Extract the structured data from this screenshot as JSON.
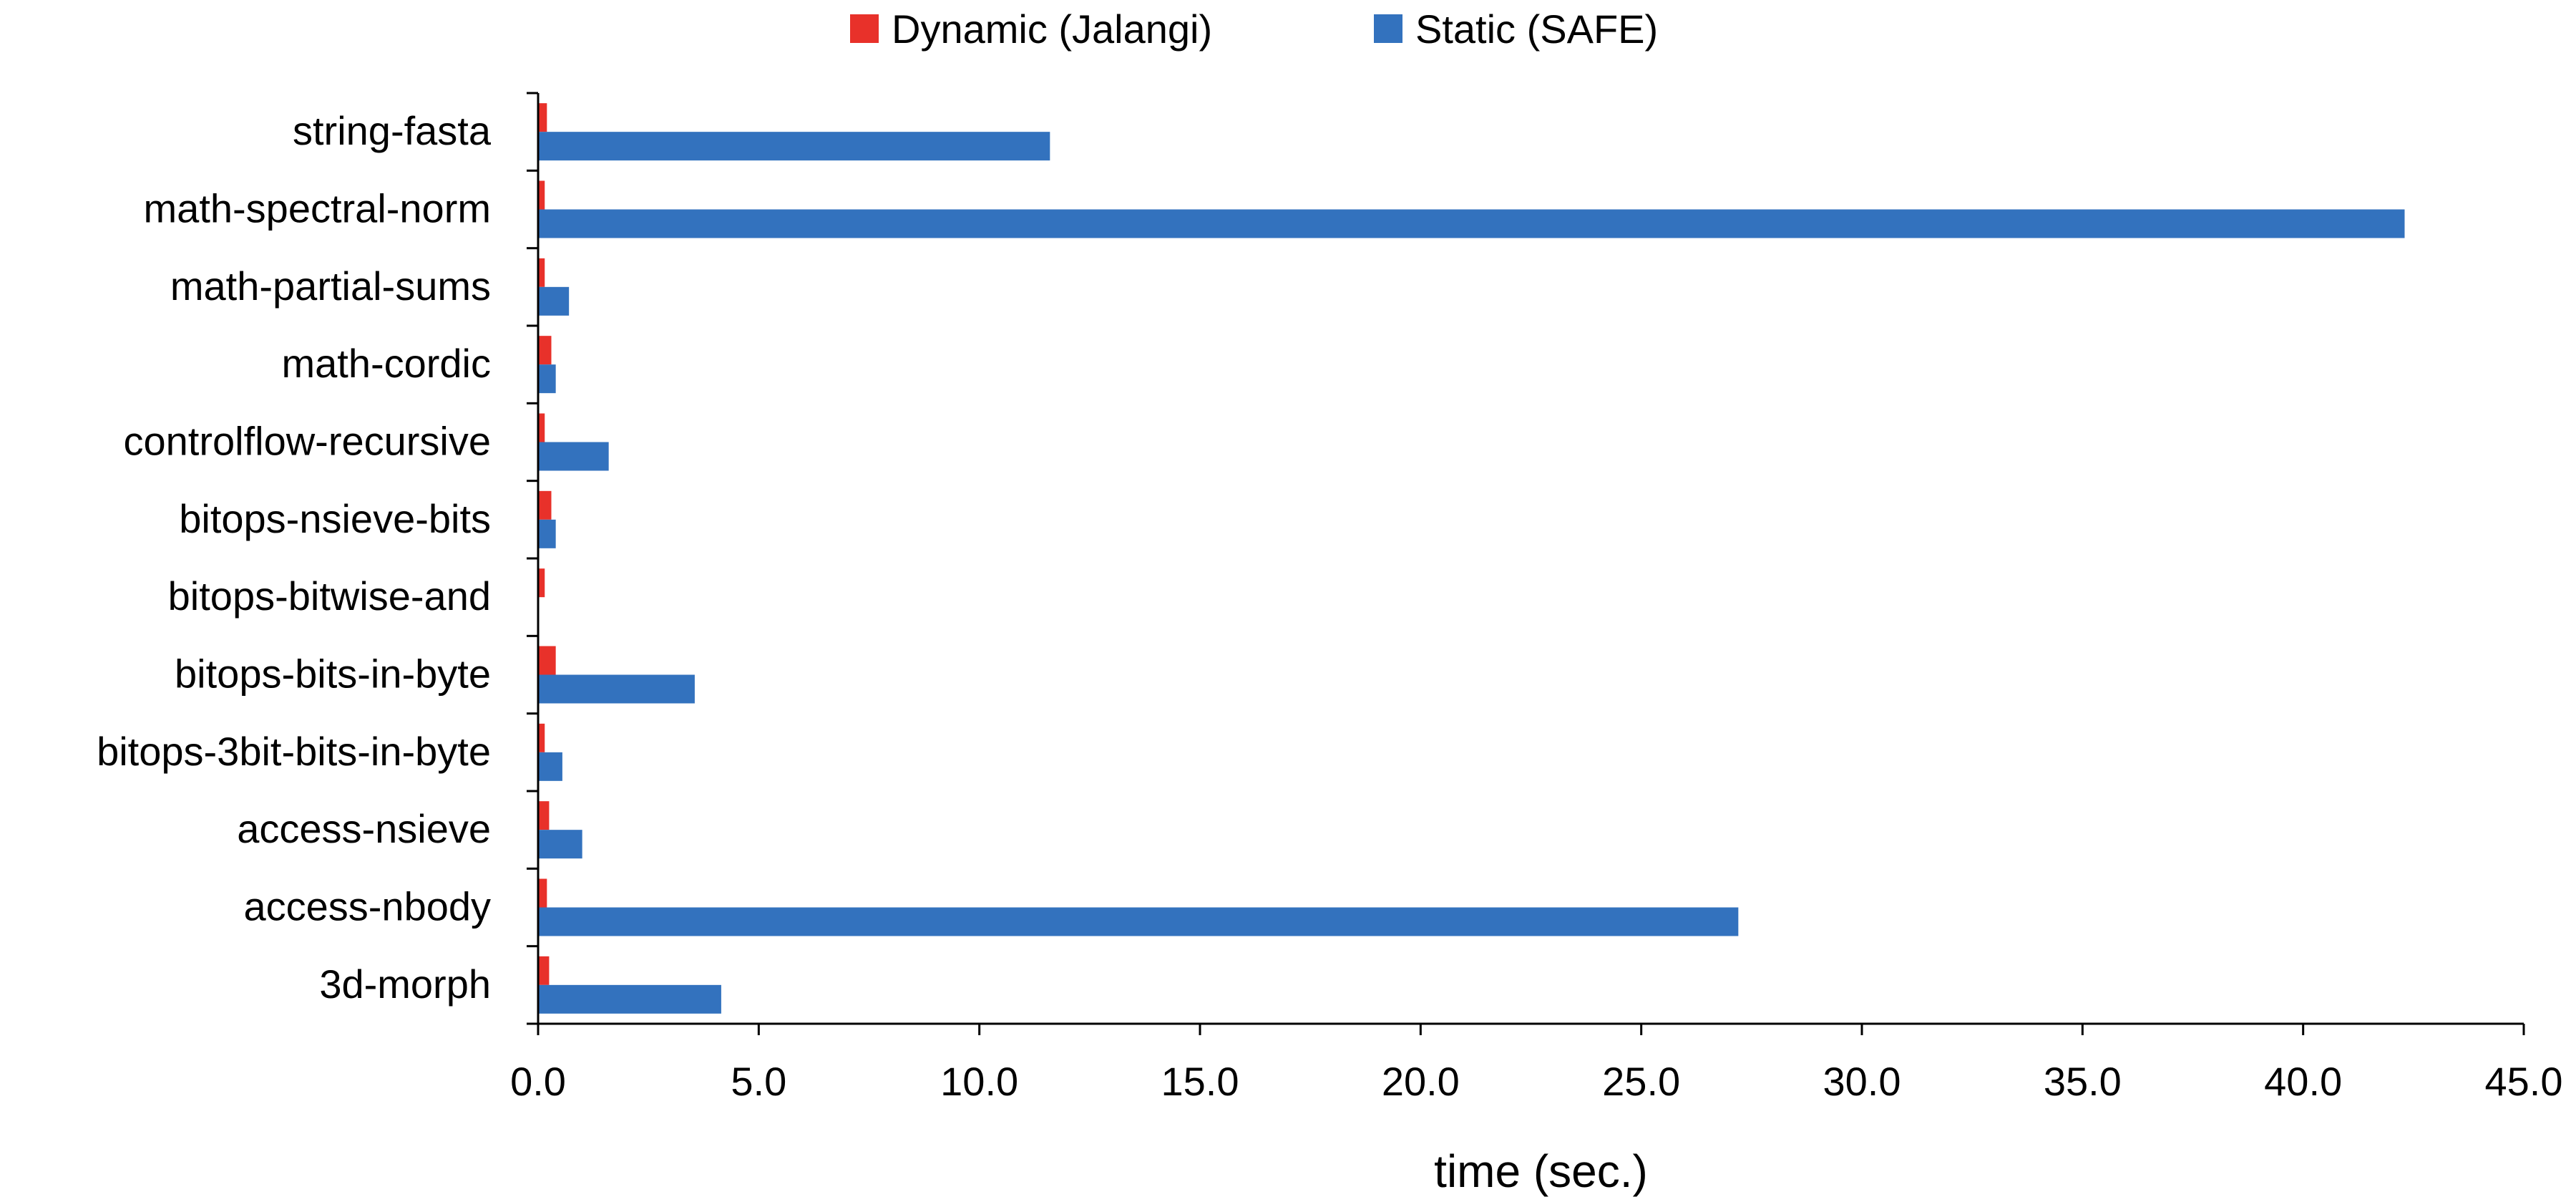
{
  "chart_data": {
    "type": "bar",
    "orientation": "horizontal",
    "title": "",
    "xlabel": "time (sec.)",
    "ylabel": "",
    "xlim": [
      0,
      45
    ],
    "x_ticks": [
      "0.0",
      "5.0",
      "10.0",
      "15.0",
      "20.0",
      "25.0",
      "30.0",
      "35.0",
      "40.0",
      "45.0"
    ],
    "grid": false,
    "legend_position": "top",
    "categories": [
      "string-fasta",
      "math-spectral-norm",
      "math-partial-sums",
      "math-cordic",
      "controlflow-recursive",
      "bitops-nsieve-bits",
      "bitops-bitwise-and",
      "bitops-bits-in-byte",
      "bitops-3bit-bits-in-byte",
      "access-nsieve",
      "access-nbody",
      "3d-morph"
    ],
    "series": [
      {
        "name": "Dynamic (Jalangi)",
        "color": "#e8312a",
        "values": [
          0.2,
          0.15,
          0.15,
          0.3,
          0.15,
          0.3,
          0.15,
          0.4,
          0.15,
          0.25,
          0.2,
          0.25
        ]
      },
      {
        "name": "Static (SAFE)",
        "color": "#3372be",
        "values": [
          11.6,
          42.3,
          0.7,
          0.4,
          1.6,
          0.4,
          0.0,
          3.55,
          0.55,
          1.0,
          27.2,
          4.15
        ]
      }
    ]
  }
}
